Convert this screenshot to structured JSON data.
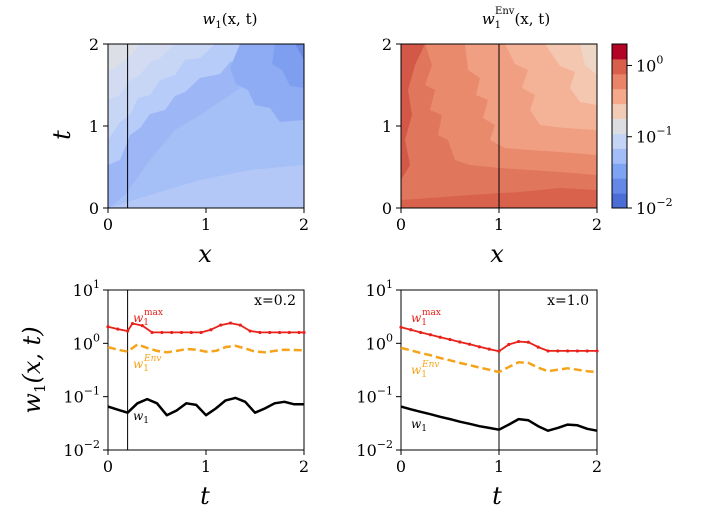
{
  "figure": {
    "y_label_main": "w",
    "y_label_sub": "1",
    "y_label_args": "(x, t)"
  },
  "chart_data": [
    {
      "type": "heatmap",
      "panel": "top-left",
      "title": "w1(x,t)",
      "title_parts": {
        "base": "w",
        "sub": "1",
        "sup": "",
        "args": "(x, t)"
      },
      "xlabel": "x",
      "ylabel": "t",
      "xlim": [
        0,
        2
      ],
      "ylim": [
        0,
        2
      ],
      "xticks": [
        "0",
        "1",
        "2"
      ],
      "yticks": [
        "0",
        "1",
        "2"
      ],
      "vline_x": 0.2,
      "colormap": "coolwarm (log scale)",
      "level_colors": [
        "#4a6ed6",
        "#6488e6",
        "#7ea3f3",
        "#a2bdf8",
        "#c3d4f4",
        "#dcdde0",
        "#f2cbb7",
        "#f5a98a",
        "#ea8468",
        "#d85f4c",
        "#b40426"
      ],
      "description": "values between ~0.02 and ~0.1, decreasing with x, oscillating in t"
    },
    {
      "type": "heatmap",
      "panel": "top-right",
      "title": "w1Env(x,t)",
      "title_parts": {
        "base": "w",
        "sub": "1",
        "sup": "Env",
        "args": "(x, t)"
      },
      "xlabel": "x",
      "ylabel": "",
      "xlim": [
        0,
        2
      ],
      "ylim": [
        0,
        2
      ],
      "xticks": [
        "0",
        "1",
        "2"
      ],
      "yticks": [
        "0",
        "1",
        "2"
      ],
      "vline_x": 1.0,
      "description": "values between ~0.1 and ~0.9, decreasing with x, oscillating in t"
    },
    {
      "type": "colorbar",
      "scale": "log",
      "tick_labels": [
        {
          "base": "10",
          "exp": "0",
          "value": 1.0
        },
        {
          "base": "10",
          "exp": "−1",
          "value": 0.1
        },
        {
          "base": "10",
          "exp": "−2",
          "value": 0.01
        }
      ],
      "range": [
        0.01,
        2.0
      ],
      "colors": [
        "#4a6ed6",
        "#6488e6",
        "#7ea3f3",
        "#a2bdf8",
        "#c3d4f4",
        "#dcdde0",
        "#f2cbb7",
        "#f5a98a",
        "#ea8468",
        "#d85f4c",
        "#b40426"
      ]
    },
    {
      "type": "line",
      "panel": "bottom-left",
      "annotation": "x=0.2",
      "xlabel": "t",
      "xlim": [
        0,
        2
      ],
      "ylim": [
        0.01,
        10
      ],
      "yscale": "log",
      "xticks": [
        "0",
        "1",
        "2"
      ],
      "yticks": [
        {
          "base": "10",
          "exp": "1"
        },
        {
          "base": "10",
          "exp": "0"
        },
        {
          "base": "10",
          "exp": "−1"
        },
        {
          "base": "10",
          "exp": "−2"
        }
      ],
      "vline_t": 0.2,
      "series": [
        {
          "name": "w1max",
          "label_base": "w",
          "label_sub": "1",
          "label_sup": "max",
          "color": "#e8221b",
          "style": "solid-with-markers",
          "t": [
            0,
            0.1,
            0.2,
            0.25,
            0.35,
            0.45,
            0.55,
            0.65,
            0.75,
            0.85,
            0.95,
            1.05,
            1.15,
            1.25,
            1.35,
            1.45,
            1.55,
            1.65,
            1.75,
            1.85,
            1.95,
            2.0
          ],
          "values": [
            2.05,
            1.85,
            1.7,
            2.35,
            2.15,
            1.6,
            1.6,
            1.6,
            1.6,
            1.6,
            1.6,
            1.8,
            2.2,
            2.4,
            2.2,
            1.7,
            1.6,
            1.6,
            1.6,
            1.6,
            1.6,
            1.6
          ]
        },
        {
          "name": "w1Env",
          "label_base": "w",
          "label_sub": "1",
          "label_sup": "Env",
          "color": "#f5a31a",
          "style": "dashed",
          "t": [
            0,
            0.1,
            0.2,
            0.3,
            0.4,
            0.5,
            0.6,
            0.7,
            0.8,
            0.9,
            1.0,
            1.1,
            1.2,
            1.3,
            1.4,
            1.5,
            1.6,
            1.7,
            1.8,
            1.9,
            2.0
          ],
          "values": [
            0.85,
            0.76,
            0.7,
            0.95,
            0.82,
            0.72,
            0.68,
            0.72,
            0.78,
            0.76,
            0.7,
            0.72,
            0.85,
            0.9,
            0.8,
            0.7,
            0.68,
            0.72,
            0.76,
            0.75,
            0.74
          ]
        },
        {
          "name": "w1",
          "label_base": "w",
          "label_sub": "1",
          "label_sup": "",
          "color": "#000000",
          "style": "solid",
          "t": [
            0,
            0.1,
            0.2,
            0.3,
            0.4,
            0.5,
            0.6,
            0.7,
            0.8,
            0.9,
            1.0,
            1.1,
            1.2,
            1.3,
            1.4,
            1.5,
            1.6,
            1.7,
            1.8,
            1.9,
            2.0
          ],
          "values": [
            0.065,
            0.057,
            0.05,
            0.075,
            0.09,
            0.075,
            0.045,
            0.055,
            0.075,
            0.07,
            0.045,
            0.06,
            0.085,
            0.095,
            0.08,
            0.05,
            0.06,
            0.075,
            0.08,
            0.072,
            0.072
          ]
        }
      ]
    },
    {
      "type": "line",
      "panel": "bottom-right",
      "annotation": "x=1.0",
      "xlabel": "t",
      "xlim": [
        0,
        2
      ],
      "ylim": [
        0.01,
        10
      ],
      "yscale": "log",
      "xticks": [
        "0",
        "1",
        "2"
      ],
      "yticks": [
        {
          "base": "10",
          "exp": "1"
        },
        {
          "base": "10",
          "exp": "0"
        },
        {
          "base": "10",
          "exp": "−1"
        },
        {
          "base": "10",
          "exp": "−2"
        }
      ],
      "vline_t": 1.0,
      "series": [
        {
          "name": "w1max",
          "label_base": "w",
          "label_sub": "1",
          "label_sup": "max",
          "color": "#e8221b",
          "style": "solid-with-markers",
          "t": [
            0,
            0.1,
            0.2,
            0.3,
            0.4,
            0.5,
            0.6,
            0.7,
            0.8,
            0.9,
            1.0,
            1.1,
            1.2,
            1.3,
            1.4,
            1.5,
            1.6,
            1.7,
            1.8,
            1.9,
            2.0
          ],
          "values": [
            2.0,
            1.8,
            1.6,
            1.45,
            1.3,
            1.18,
            1.06,
            0.96,
            0.86,
            0.78,
            0.71,
            0.95,
            1.08,
            1.05,
            0.85,
            0.72,
            0.72,
            0.72,
            0.72,
            0.72,
            0.72
          ]
        },
        {
          "name": "w1Env",
          "label_base": "w",
          "label_sub": "1",
          "label_sup": "Env",
          "color": "#f5a31a",
          "style": "dashed",
          "t": [
            0,
            0.1,
            0.2,
            0.3,
            0.4,
            0.5,
            0.6,
            0.7,
            0.8,
            0.9,
            1.0,
            1.1,
            1.2,
            1.3,
            1.4,
            1.5,
            1.6,
            1.7,
            1.8,
            1.9,
            2.0
          ],
          "values": [
            0.82,
            0.74,
            0.66,
            0.6,
            0.53,
            0.48,
            0.43,
            0.39,
            0.35,
            0.32,
            0.29,
            0.36,
            0.44,
            0.43,
            0.35,
            0.3,
            0.32,
            0.34,
            0.32,
            0.3,
            0.29
          ]
        },
        {
          "name": "w1",
          "label_base": "w",
          "label_sub": "1",
          "label_sup": "",
          "color": "#000000",
          "style": "solid",
          "t": [
            0,
            0.1,
            0.2,
            0.3,
            0.4,
            0.5,
            0.6,
            0.7,
            0.8,
            0.9,
            1.0,
            1.1,
            1.2,
            1.3,
            1.4,
            1.5,
            1.6,
            1.7,
            1.8,
            1.9,
            2.0
          ],
          "values": [
            0.065,
            0.058,
            0.052,
            0.047,
            0.042,
            0.038,
            0.034,
            0.031,
            0.028,
            0.026,
            0.024,
            0.03,
            0.038,
            0.036,
            0.028,
            0.023,
            0.026,
            0.03,
            0.029,
            0.025,
            0.023
          ]
        }
      ]
    }
  ]
}
